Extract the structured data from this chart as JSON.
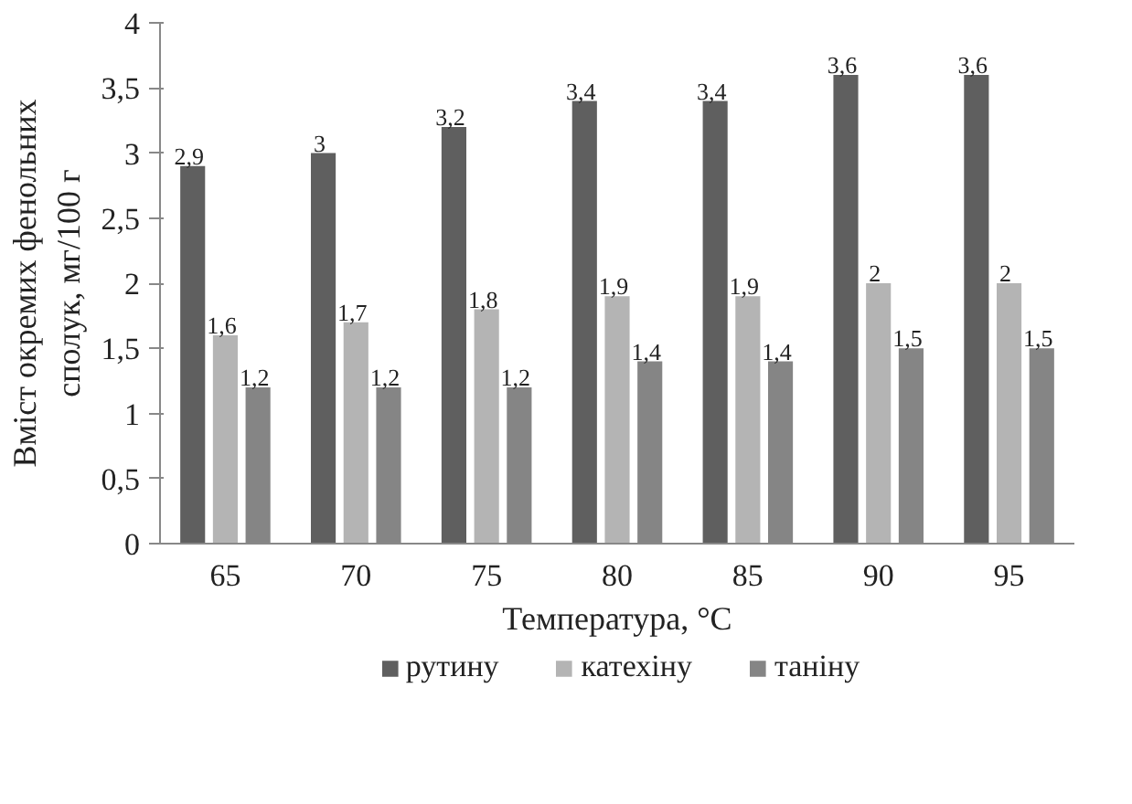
{
  "chart_data": {
    "type": "bar",
    "xlabel": "Температура, °C",
    "ylabel": "Вміст окремих фенольних сполук, мг/100 г",
    "categories": [
      "65",
      "70",
      "75",
      "80",
      "85",
      "90",
      "95"
    ],
    "series": [
      {
        "name": "рутину",
        "color": "#5f5f5f",
        "values": [
          2.9,
          3.0,
          3.2,
          3.4,
          3.4,
          3.6,
          3.6
        ],
        "value_labels": [
          "2,9",
          "3",
          "3,2",
          "3,4",
          "3,4",
          "3,6",
          "3,6"
        ]
      },
      {
        "name": "катехіну",
        "color": "#b4b4b4",
        "values": [
          1.6,
          1.7,
          1.8,
          1.9,
          1.9,
          2.0,
          2.0
        ],
        "value_labels": [
          "1,6",
          "1,7",
          "1,8",
          "1,9",
          "1,9",
          "2",
          "2"
        ]
      },
      {
        "name": "таніну",
        "color": "#858585",
        "values": [
          1.2,
          1.2,
          1.2,
          1.4,
          1.4,
          1.5,
          1.5
        ],
        "value_labels": [
          "1,2",
          "1,2",
          "1,2",
          "1,4",
          "1,4",
          "1,5",
          "1,5"
        ]
      }
    ],
    "ylim": [
      0,
      4
    ],
    "yticks": [
      0,
      {
        "value": 0.5,
        "label": "0,5"
      },
      1,
      {
        "value": 1.5,
        "label": "1,5"
      },
      2,
      {
        "value": 2.5,
        "label": "2,5"
      },
      3,
      {
        "value": 3.5,
        "label": "3,5"
      },
      4
    ],
    "grid": false,
    "legend": "bottom"
  }
}
